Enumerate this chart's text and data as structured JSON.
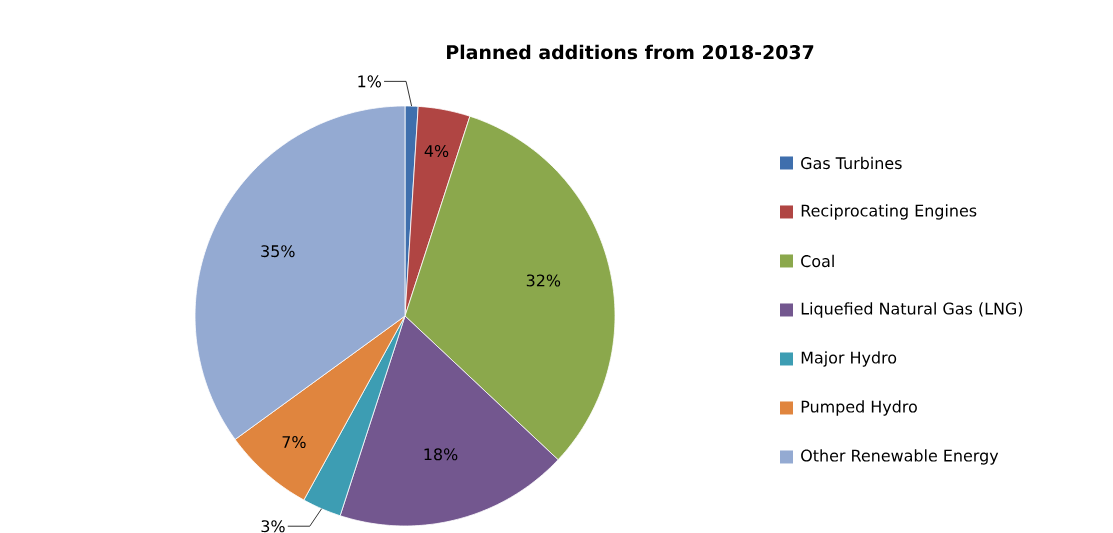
{
  "chart_data": {
    "type": "pie",
    "title": "Planned additions from 2018-2037",
    "categories": [
      "Gas Turbines",
      "Reciprocating Engines",
      "Coal",
      "Liquefied Natural Gas (LNG)",
      "Major Hydro",
      "Pumped Hydro",
      "Other Renewable Energy"
    ],
    "values": [
      1,
      4,
      32,
      18,
      3,
      7,
      35
    ],
    "value_labels": [
      "1%",
      "4%",
      "32%",
      "18%",
      "3%",
      "7%",
      "35%"
    ],
    "colors": [
      "#3f6fad",
      "#b04543",
      "#8ba84c",
      "#73578f",
      "#3d9db3",
      "#e0853e",
      "#94aad2"
    ],
    "legend": "right"
  }
}
